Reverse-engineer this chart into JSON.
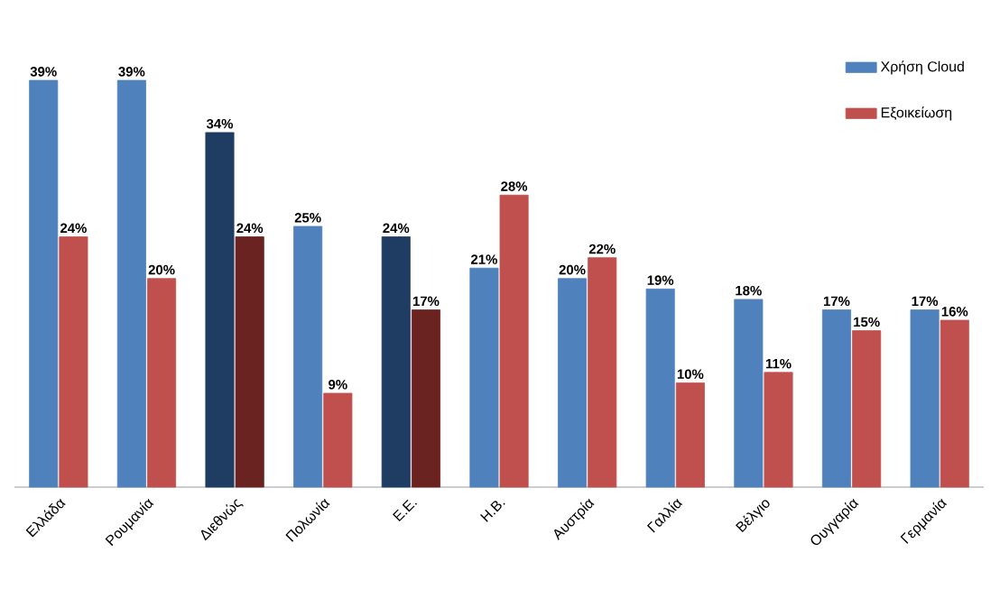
{
  "chart_data": {
    "type": "bar",
    "categories": [
      "Ελλάδα",
      "Ρουμανία",
      "Διεθνώς",
      "Πολωνία",
      "Ε.Ε.",
      "Η.Β.",
      "Αυστρία",
      "Γαλλία",
      "Βέλγιο",
      "Ουγγαρία",
      "Γερμανία"
    ],
    "series": [
      {
        "name": "Χρήση Cloud",
        "color": "#4f81bd",
        "colors": [
          "#4f81bd",
          "#4f81bd",
          "#1f3d63",
          "#4f81bd",
          "#1f3d63",
          "#4f81bd",
          "#4f81bd",
          "#4f81bd",
          "#4f81bd",
          "#4f81bd",
          "#4f81bd"
        ],
        "values": [
          39,
          39,
          34,
          25,
          24,
          21,
          20,
          19,
          18,
          17,
          17
        ],
        "value_labels": [
          "39%",
          "39%",
          "34%",
          "25%",
          "24%",
          "21%",
          "20%",
          "19%",
          "18%",
          "17%",
          "17%"
        ]
      },
      {
        "name": "Εξοικείωση",
        "color": "#c0504d",
        "colors": [
          "#c0504d",
          "#c0504d",
          "#6b2321",
          "#c0504d",
          "#6b2321",
          "#c0504d",
          "#c0504d",
          "#c0504d",
          "#c0504d",
          "#c0504d",
          "#c0504d"
        ],
        "values": [
          24,
          20,
          24,
          9,
          17,
          28,
          22,
          10,
          11,
          15,
          16
        ],
        "value_labels": [
          "24%",
          "20%",
          "24%",
          "9%",
          "17%",
          "28%",
          "22%",
          "10%",
          "11%",
          "15%",
          "16%"
        ]
      }
    ],
    "legend": "top right"
  }
}
